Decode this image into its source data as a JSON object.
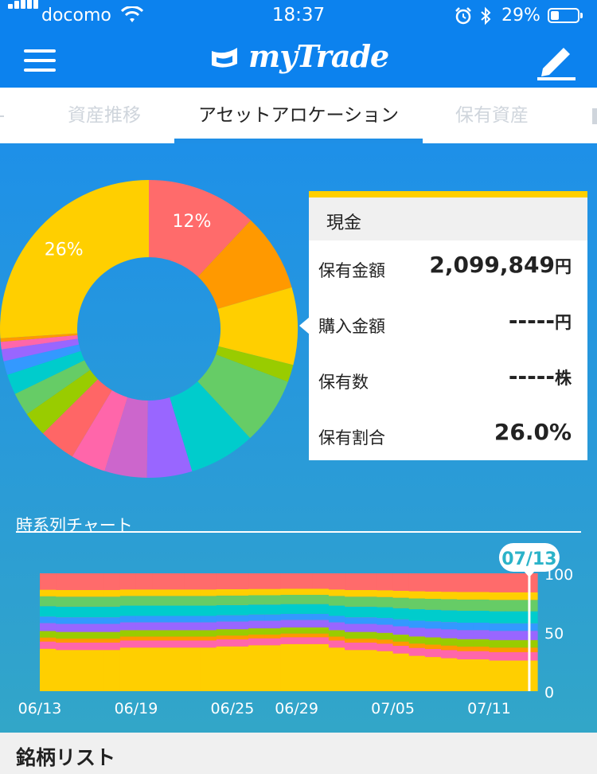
{
  "status_bar": {
    "carrier": "docomo",
    "time": "18:37",
    "battery": "29%"
  },
  "header": {
    "title": "myTrade"
  },
  "tabs": [
    {
      "label": "資産推移",
      "active": false
    },
    {
      "label": "アセットアロケーション",
      "active": true
    },
    {
      "label": "保有資産",
      "active": false
    }
  ],
  "donut": {
    "slices": [
      {
        "value": 12,
        "color": "#ff6b6b",
        "label": "12%"
      },
      {
        "value": 8.5,
        "color": "#ff9900"
      },
      {
        "value": 8.4,
        "color": "#ffcf00"
      },
      {
        "value": 1.9,
        "color": "#99cc00"
      },
      {
        "value": 7.3,
        "color": "#66cc66"
      },
      {
        "value": 7.2,
        "color": "#00cccc"
      },
      {
        "value": 4.9,
        "color": "#9966ff"
      },
      {
        "value": 4.6,
        "color": "#cc66cc"
      },
      {
        "value": 3.8,
        "color": "#ff66aa"
      },
      {
        "value": 4.0,
        "color": "#ff6666"
      },
      {
        "value": 2.7,
        "color": "#99cc00"
      },
      {
        "value": 2.5,
        "color": "#66cc66"
      },
      {
        "value": 2.2,
        "color": "#00cccc"
      },
      {
        "value": 1.5,
        "color": "#3399ff"
      },
      {
        "value": 1.3,
        "color": "#9966ff"
      },
      {
        "value": 0.8,
        "color": "#ff66aa"
      },
      {
        "value": 0.4,
        "color": "#ff9900"
      },
      {
        "value": 26,
        "color": "#ffcf00",
        "label": "26%"
      }
    ]
  },
  "detail": {
    "title": "現金",
    "rows": [
      {
        "label": "保有金額",
        "value": "2,099,849",
        "unit": "円"
      },
      {
        "label": "購入金額",
        "value": "-----",
        "unit": "円"
      },
      {
        "label": "保有数",
        "value": "-----",
        "unit": "株"
      },
      {
        "label": "保有割合",
        "value": "26.0%",
        "unit": ""
      }
    ]
  },
  "timeseries": {
    "title": "時系列チャート",
    "tooltip": "07/13",
    "chart_data": {
      "type": "area",
      "x": [
        "06/13",
        "06/14",
        "06/15",
        "06/16",
        "06/17",
        "06/18",
        "06/19",
        "06/20",
        "06/21",
        "06/22",
        "06/23",
        "06/24",
        "06/25",
        "06/26",
        "06/27",
        "06/28",
        "06/29",
        "06/30",
        "07/01",
        "07/02",
        "07/03",
        "07/04",
        "07/05",
        "07/06",
        "07/07",
        "07/08",
        "07/09",
        "07/10",
        "07/11",
        "07/12",
        "07/13"
      ],
      "x_ticks": [
        "06/13",
        "06/19",
        "06/25",
        "06/29",
        "07/05",
        "07/11"
      ],
      "y_ticks": [
        "0",
        "50",
        "100"
      ],
      "ylim": [
        0,
        100
      ],
      "cash_share": [
        36,
        35,
        35,
        35,
        35,
        37,
        37,
        37,
        37,
        37,
        37,
        38,
        38,
        39,
        39,
        40,
        40,
        40,
        37,
        35,
        35,
        34,
        32,
        30,
        29,
        28,
        27,
        27,
        26,
        26,
        26
      ],
      "band_colors": [
        "#ffcf00",
        "#ff66aa",
        "#ff9900",
        "#99cc00",
        "#9966ff",
        "#3399ff",
        "#00cccc",
        "#66cc66",
        "#ffcf00",
        "#ff6b6b"
      ],
      "band_weights": [
        0,
        1.1,
        0.6,
        1.0,
        1.2,
        1.0,
        1.6,
        1.5,
        1.0,
        2.5
      ]
    }
  },
  "list": {
    "title": "銘柄リスト"
  }
}
